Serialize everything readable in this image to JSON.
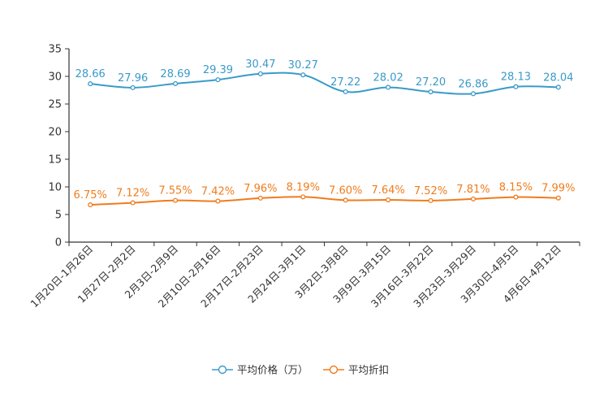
{
  "chart_data": {
    "type": "line",
    "title": "",
    "xlabel": "",
    "ylabel": "",
    "ylim": [
      0,
      35
    ],
    "yticks": [
      0,
      5,
      10,
      15,
      20,
      25,
      30,
      35
    ],
    "grid": false,
    "legend_position": "bottom-center",
    "categories": [
      "1月20日-1月26日",
      "1月27日-2月2日",
      "2月3日-2月9日",
      "2月10日-2月16日",
      "2月17日-2月23日",
      "2月24日-3月1日",
      "3月2日-3月8日",
      "3月9日-3月15日",
      "3月16日-3月22日",
      "3月23日-3月29日",
      "3月30日-4月5日",
      "4月6日-4月12日"
    ],
    "series": [
      {
        "name": "平均价格（万）",
        "color": "#3a9ac9",
        "values": [
          28.66,
          27.96,
          28.69,
          29.39,
          30.47,
          30.27,
          27.22,
          28.02,
          27.2,
          26.86,
          28.13,
          28.04
        ],
        "labels": [
          "28.66",
          "27.96",
          "28.69",
          "29.39",
          "30.47",
          "30.27",
          "27.22",
          "28.02",
          "27.20",
          "26.86",
          "28.13",
          "28.04"
        ]
      },
      {
        "name": "平均折扣",
        "color": "#f07c1c",
        "values": [
          6.75,
          7.12,
          7.55,
          7.42,
          7.96,
          8.19,
          7.6,
          7.64,
          7.52,
          7.81,
          8.15,
          7.99
        ],
        "labels": [
          "6.75%",
          "7.12%",
          "7.55%",
          "7.42%",
          "7.96%",
          "8.19%",
          "7.60%",
          "7.64%",
          "7.52%",
          "7.81%",
          "8.15%",
          "7.99%"
        ]
      }
    ]
  }
}
